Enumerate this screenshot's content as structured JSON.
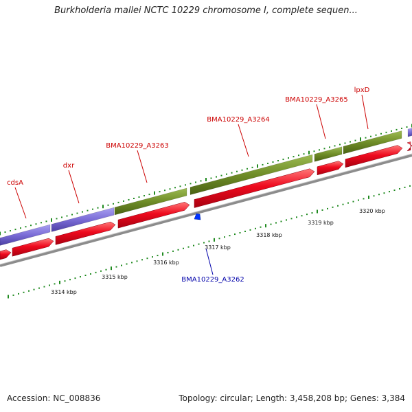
{
  "title": "Burkholderia mallei NCTC 10229 chromosome I, complete sequen...",
  "footer": {
    "accession": "Accession: NC_008836",
    "summary": "Topology: circular; Length: 3,458,208 bp; Genes: 3,384"
  },
  "colors": {
    "forward_gene": "#e8001a",
    "purple_feature": "#7a6cd6",
    "olive_feature": "#6f8d28",
    "backbone": "#8c8c8c",
    "tick": "#1f8a1f",
    "label_forward": "#cc0000",
    "label_reverse": "#0000aa",
    "reverse_gene": "#0033ff"
  },
  "axis": {
    "unit": "kbp",
    "tick_labels": [
      "3314 kbp",
      "3315 kbp",
      "3316 kbp",
      "3317 kbp",
      "3318 kbp",
      "3319 kbp",
      "3320 kbp"
    ]
  },
  "genes": [
    {
      "name": "cdsA",
      "strand": "forward"
    },
    {
      "name": "dxr",
      "strand": "forward"
    },
    {
      "name": "BMA10229_A3263",
      "strand": "forward"
    },
    {
      "name": "BMA10229_A3264",
      "strand": "forward"
    },
    {
      "name": "BMA10229_A3265",
      "strand": "forward"
    },
    {
      "name": "lpxD",
      "strand": "forward"
    },
    {
      "name": "BMA10229_A3262",
      "strand": "reverse"
    }
  ]
}
